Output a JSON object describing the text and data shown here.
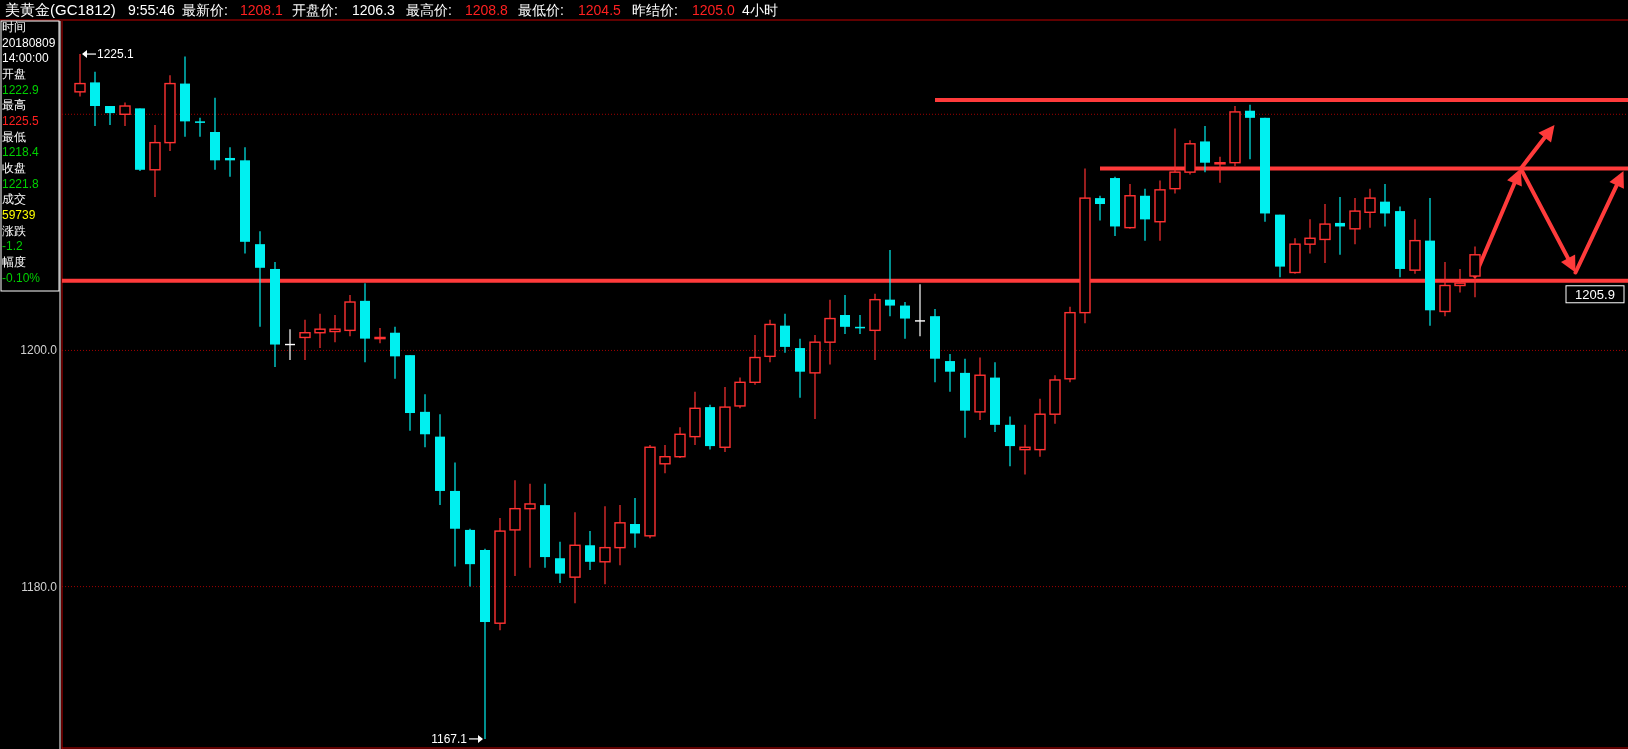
{
  "chart_data": {
    "type": "candlestick",
    "title": "美黄金(GC1812)",
    "categories": [
      null,
      null,
      null,
      null,
      null,
      null,
      null,
      null,
      null,
      null,
      null,
      null,
      null,
      null,
      null,
      null,
      null,
      null,
      null,
      null,
      null,
      null,
      null,
      null,
      null,
      null,
      null,
      null,
      null,
      null,
      null,
      null,
      null,
      null,
      null,
      null,
      null,
      null,
      null,
      null,
      null,
      null,
      null,
      null,
      null,
      null,
      null,
      null,
      null,
      null,
      null,
      null,
      null,
      null,
      null,
      null,
      null,
      null,
      null,
      null,
      null,
      null,
      null,
      null,
      null,
      null,
      null,
      null,
      null,
      null,
      null,
      null,
      null,
      null,
      null,
      null,
      null,
      null,
      null,
      null,
      null,
      null,
      null,
      null,
      null,
      null,
      null,
      null,
      null,
      null,
      null,
      null,
      null,
      null
    ],
    "ohlc": [
      [
        1221.9,
        1225.1,
        1221.5,
        1222.6
      ],
      [
        1222.7,
        1223.6,
        1219.0,
        1220.7
      ],
      [
        1220.7,
        1220.7,
        1219.1,
        1220.1
      ],
      [
        1220.0,
        1221.0,
        1219.0,
        1220.7
      ],
      [
        1220.5,
        1220.5,
        1215.2,
        1215.3
      ],
      [
        1215.3,
        1219.1,
        1213.0,
        1217.6
      ],
      [
        1217.6,
        1223.3,
        1216.9,
        1222.6
      ],
      [
        1222.6,
        1224.9,
        1218.1,
        1219.4
      ],
      [
        1219.4,
        1219.7,
        1218.1,
        1219.3
      ],
      [
        1218.5,
        1221.4,
        1215.3,
        1216.1
      ],
      [
        1216.3,
        1217.2,
        1214.7,
        1216.1
      ],
      [
        1216.1,
        1217.2,
        1208.2,
        1209.2
      ],
      [
        1209.0,
        1210.1,
        1202.0,
        1207.0
      ],
      [
        1206.9,
        1207.5,
        1198.6,
        1200.5
      ],
      [
        1200.5,
        1201.8,
        1199.2,
        1200.5
      ],
      [
        1201.1,
        1202.6,
        1199.2,
        1201.5
      ],
      [
        1201.5,
        1203.1,
        1200.2,
        1201.8
      ],
      [
        1201.6,
        1203.0,
        1200.7,
        1201.8
      ],
      [
        1201.7,
        1204.7,
        1201.2,
        1204.1
      ],
      [
        1204.2,
        1205.7,
        1199.0,
        1201.0
      ],
      [
        1201.0,
        1201.9,
        1200.6,
        1201.1
      ],
      [
        1201.5,
        1202.0,
        1197.6,
        1199.5
      ],
      [
        1199.6,
        1199.6,
        1193.2,
        1194.7
      ],
      [
        1194.8,
        1196.3,
        1191.8,
        1192.9
      ],
      [
        1192.7,
        1194.6,
        1186.9,
        1188.1
      ],
      [
        1188.1,
        1190.5,
        1181.7,
        1184.9
      ],
      [
        1184.8,
        1184.9,
        1180.0,
        1181.9
      ],
      [
        1183.1,
        1183.2,
        1167.1,
        1177.0
      ],
      [
        1176.9,
        1185.8,
        1176.3,
        1184.7
      ],
      [
        1184.8,
        1189.0,
        1180.9,
        1186.6
      ],
      [
        1186.6,
        1188.7,
        1181.6,
        1187.0
      ],
      [
        1186.9,
        1188.7,
        1181.6,
        1182.5
      ],
      [
        1182.4,
        1183.8,
        1180.3,
        1181.1
      ],
      [
        1180.8,
        1186.3,
        1178.6,
        1183.5
      ],
      [
        1183.5,
        1184.7,
        1181.4,
        1182.1
      ],
      [
        1182.1,
        1186.8,
        1180.2,
        1183.3
      ],
      [
        1183.3,
        1186.9,
        1181.8,
        1185.4
      ],
      [
        1185.3,
        1187.5,
        1183.3,
        1184.5
      ],
      [
        1184.3,
        1192.0,
        1184.1,
        1191.8
      ],
      [
        1190.4,
        1192.0,
        1189.6,
        1191.0
      ],
      [
        1191.0,
        1193.5,
        1190.9,
        1192.9
      ],
      [
        1192.7,
        1196.5,
        1192.0,
        1195.1
      ],
      [
        1195.2,
        1195.4,
        1191.6,
        1191.9
      ],
      [
        1191.8,
        1196.9,
        1191.4,
        1195.2
      ],
      [
        1195.3,
        1197.7,
        1195.1,
        1197.3
      ],
      [
        1197.3,
        1201.3,
        1197.1,
        1199.4
      ],
      [
        1199.5,
        1202.6,
        1199.0,
        1202.2
      ],
      [
        1202.1,
        1203.1,
        1199.8,
        1200.3
      ],
      [
        1200.2,
        1201.0,
        1196.0,
        1198.2
      ],
      [
        1198.1,
        1201.3,
        1194.2,
        1200.7
      ],
      [
        1200.7,
        1204.3,
        1198.8,
        1202.7
      ],
      [
        1203.0,
        1204.7,
        1201.4,
        1202.0
      ],
      [
        1202.0,
        1203.0,
        1201.4,
        1201.9
      ],
      [
        1201.7,
        1204.8,
        1199.2,
        1204.3
      ],
      [
        1204.3,
        1208.5,
        1202.9,
        1203.8
      ],
      [
        1203.8,
        1204.1,
        1201.0,
        1202.7
      ],
      [
        1202.5,
        1205.6,
        1201.2,
        1202.5
      ],
      [
        1202.9,
        1203.5,
        1197.3,
        1199.3
      ],
      [
        1199.1,
        1199.7,
        1196.5,
        1198.2
      ],
      [
        1198.1,
        1199.3,
        1192.6,
        1194.9
      ],
      [
        1194.8,
        1199.4,
        1194.1,
        1197.9
      ],
      [
        1197.7,
        1199.0,
        1193.1,
        1193.7
      ],
      [
        1193.7,
        1194.4,
        1190.2,
        1191.9
      ],
      [
        1191.6,
        1193.7,
        1189.5,
        1191.8
      ],
      [
        1191.6,
        1195.9,
        1191.0,
        1194.6
      ],
      [
        1194.6,
        1197.9,
        1193.8,
        1197.5
      ],
      [
        1197.6,
        1203.7,
        1197.3,
        1203.2
      ],
      [
        1203.2,
        1215.4,
        1202.3,
        1212.9
      ],
      [
        1212.9,
        1213.1,
        1211.0,
        1212.4
      ],
      [
        1214.6,
        1214.7,
        1209.7,
        1210.5
      ],
      [
        1210.4,
        1214.1,
        1210.3,
        1213.1
      ],
      [
        1213.1,
        1213.7,
        1209.3,
        1211.1
      ],
      [
        1210.9,
        1214.4,
        1209.3,
        1213.6
      ],
      [
        1213.7,
        1218.8,
        1213.3,
        1215.1
      ],
      [
        1215.1,
        1217.8,
        1214.9,
        1217.5
      ],
      [
        1217.7,
        1219.0,
        1215.1,
        1215.9
      ],
      [
        1215.8,
        1216.4,
        1214.2,
        1215.9
      ],
      [
        1215.9,
        1220.7,
        1215.6,
        1220.2
      ],
      [
        1220.3,
        1220.8,
        1216.2,
        1219.7
      ],
      [
        1219.7,
        1219.7,
        1210.9,
        1211.6
      ],
      [
        1211.5,
        1211.5,
        1206.2,
        1207.1
      ],
      [
        1206.6,
        1209.5,
        1206.5,
        1209.0
      ],
      [
        1209.0,
        1211.1,
        1208.2,
        1209.5
      ],
      [
        1209.4,
        1212.4,
        1207.4,
        1210.7
      ],
      [
        1210.8,
        1213.0,
        1208.1,
        1210.5
      ],
      [
        1210.3,
        1212.9,
        1209.0,
        1211.8
      ],
      [
        1211.7,
        1213.7,
        1210.4,
        1212.9
      ],
      [
        1212.6,
        1214.1,
        1210.5,
        1211.6
      ],
      [
        1211.8,
        1212.2,
        1206.2,
        1206.9
      ],
      [
        1206.8,
        1211.1,
        1206.5,
        1209.3
      ],
      [
        1209.3,
        1212.9,
        1202.1,
        1203.4
      ],
      [
        1203.3,
        1207.5,
        1202.9,
        1205.5
      ],
      [
        1205.5,
        1206.9,
        1204.9,
        1205.7
      ],
      [
        1206.3,
        1208.8,
        1204.5,
        1208.1
      ]
    ],
    "ylim": [
      1166.5,
      1227.9
    ],
    "yticks": [
      {
        "value": 1220,
        "label": null
      },
      {
        "value": 1200,
        "label": "1200.0"
      },
      {
        "value": 1180,
        "label": "1180.0"
      }
    ],
    "grid": "y",
    "ref_lines": [
      {
        "axis": "y",
        "value": 1205.9,
        "label": "1205.9",
        "color": "#ff3b3b"
      },
      {
        "axis": "y",
        "value": 1215.4,
        "color": "#ff3b3b"
      },
      {
        "axis": "y",
        "value": 1221.2,
        "color": "#ff3b3b"
      }
    ],
    "annotations": [
      "9:55:46",
      "最新价:",
      "1208.1",
      "开盘价:",
      "1206.3",
      "最高价:",
      "1208.8",
      "最低价:",
      "1204.5",
      "昨结价:",
      "1205.0",
      "4小时",
      "时间",
      "20180809",
      "14:00:00",
      "开盘",
      "1222.9",
      "最高",
      "1225.5",
      "最低",
      "1218.4",
      "收盘",
      "1221.8",
      "成交",
      "59739",
      "涨跌",
      "-1.2",
      "幅度",
      "-0.10%",
      "1225.1",
      "1167.1"
    ]
  }
}
